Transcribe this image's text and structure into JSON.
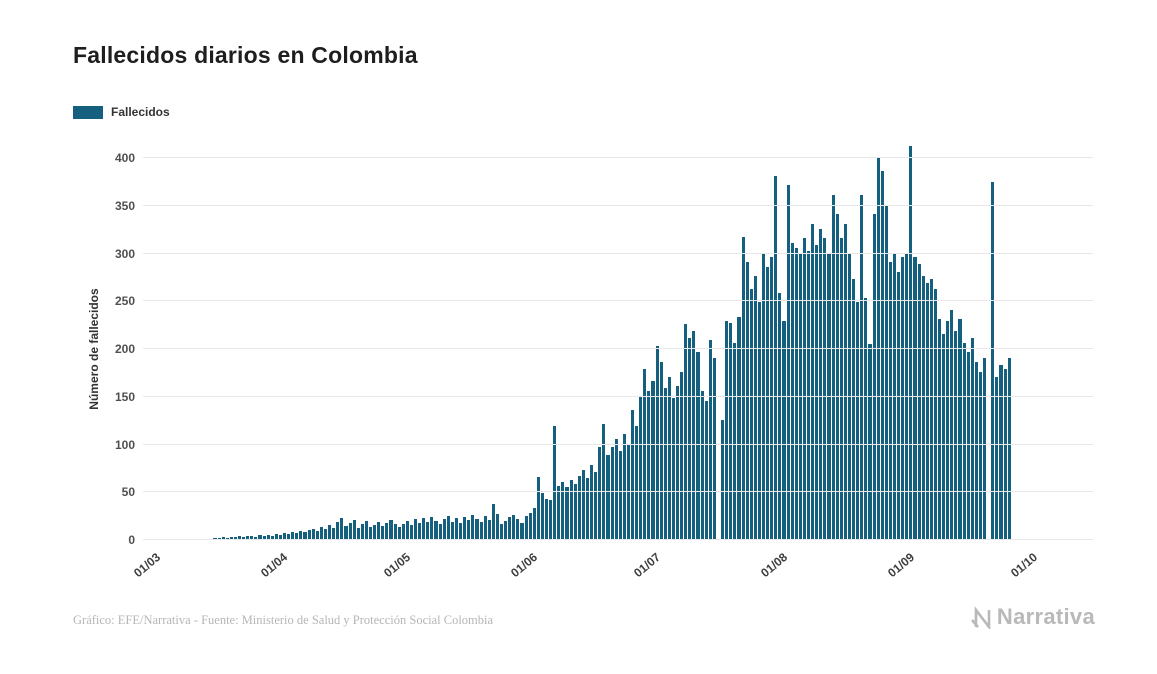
{
  "header": {
    "title": "Fallecidos diarios en Colombia"
  },
  "legend": {
    "label": "Fallecidos"
  },
  "footer": {
    "credit": "Gráfico: EFE/Narrativa - Fuente: Ministerio de Salud y Protección Social Colombia"
  },
  "branding": {
    "logo_text": "Narrativa"
  },
  "colors": {
    "bar": "#14607e",
    "gridline": "#e8e8e8",
    "title_text": "#1e1e1e",
    "footer_text": "#b6b6b6",
    "logo_text": "#b9b9b9"
  },
  "chart_data": {
    "type": "bar",
    "title": "Fallecidos diarios en Colombia",
    "series_name": "Fallecidos",
    "xlabel": "",
    "ylabel": "Número de fallecidos",
    "ylim": [
      0,
      400
    ],
    "yticks": [
      0,
      50,
      100,
      150,
      200,
      250,
      300,
      350,
      400
    ],
    "grid": "horizontal",
    "legend_position": "top-left",
    "xtick_labels": [
      "01/03",
      "01/04",
      "01/05",
      "01/06",
      "01/07",
      "01/08",
      "01/09",
      "01/10"
    ],
    "xtick_day_offsets": [
      0,
      31,
      61,
      92,
      122,
      153,
      184,
      214
    ],
    "x_start_label": "01/03",
    "bar_color": "#14607e",
    "values": [
      0,
      0,
      0,
      0,
      0,
      0,
      0,
      0,
      0,
      0,
      0,
      0,
      0,
      0,
      0,
      1,
      1,
      2,
      1,
      2,
      2,
      3,
      2,
      3,
      3,
      2,
      4,
      3,
      4,
      3,
      5,
      4,
      6,
      5,
      7,
      6,
      8,
      7,
      9,
      11,
      8,
      13,
      10,
      15,
      12,
      18,
      22,
      14,
      17,
      20,
      12,
      16,
      19,
      13,
      15,
      18,
      14,
      17,
      20,
      16,
      13,
      16,
      19,
      15,
      21,
      17,
      22,
      18,
      23,
      19,
      16,
      21,
      24,
      18,
      22,
      17,
      23,
      20,
      25,
      21,
      18,
      24,
      20,
      37,
      26,
      16,
      19,
      23,
      25,
      21,
      17,
      24,
      27,
      32,
      65,
      48,
      42,
      41,
      118,
      56,
      60,
      54,
      62,
      58,
      66,
      72,
      64,
      78,
      70,
      96,
      120,
      88,
      96,
      105,
      92,
      110,
      100,
      135,
      118,
      150,
      178,
      155,
      165,
      202,
      185,
      158,
      170,
      148,
      160,
      175,
      225,
      210,
      218,
      196,
      155,
      145,
      208,
      190,
      0,
      125,
      228,
      226,
      205,
      232,
      316,
      290,
      262,
      275,
      248,
      300,
      285,
      295,
      380,
      258,
      228,
      371,
      310,
      305,
      298,
      315,
      302,
      330,
      308,
      325,
      315,
      298,
      360,
      340,
      315,
      330,
      298,
      272,
      248,
      360,
      252,
      204,
      340,
      400,
      385,
      350,
      290,
      298,
      280,
      295,
      300,
      412,
      295,
      288,
      275,
      268,
      272,
      262,
      230,
      215,
      228,
      240,
      218,
      230,
      205,
      196,
      210,
      185,
      175,
      190,
      0,
      374,
      170,
      182,
      178,
      190
    ]
  }
}
